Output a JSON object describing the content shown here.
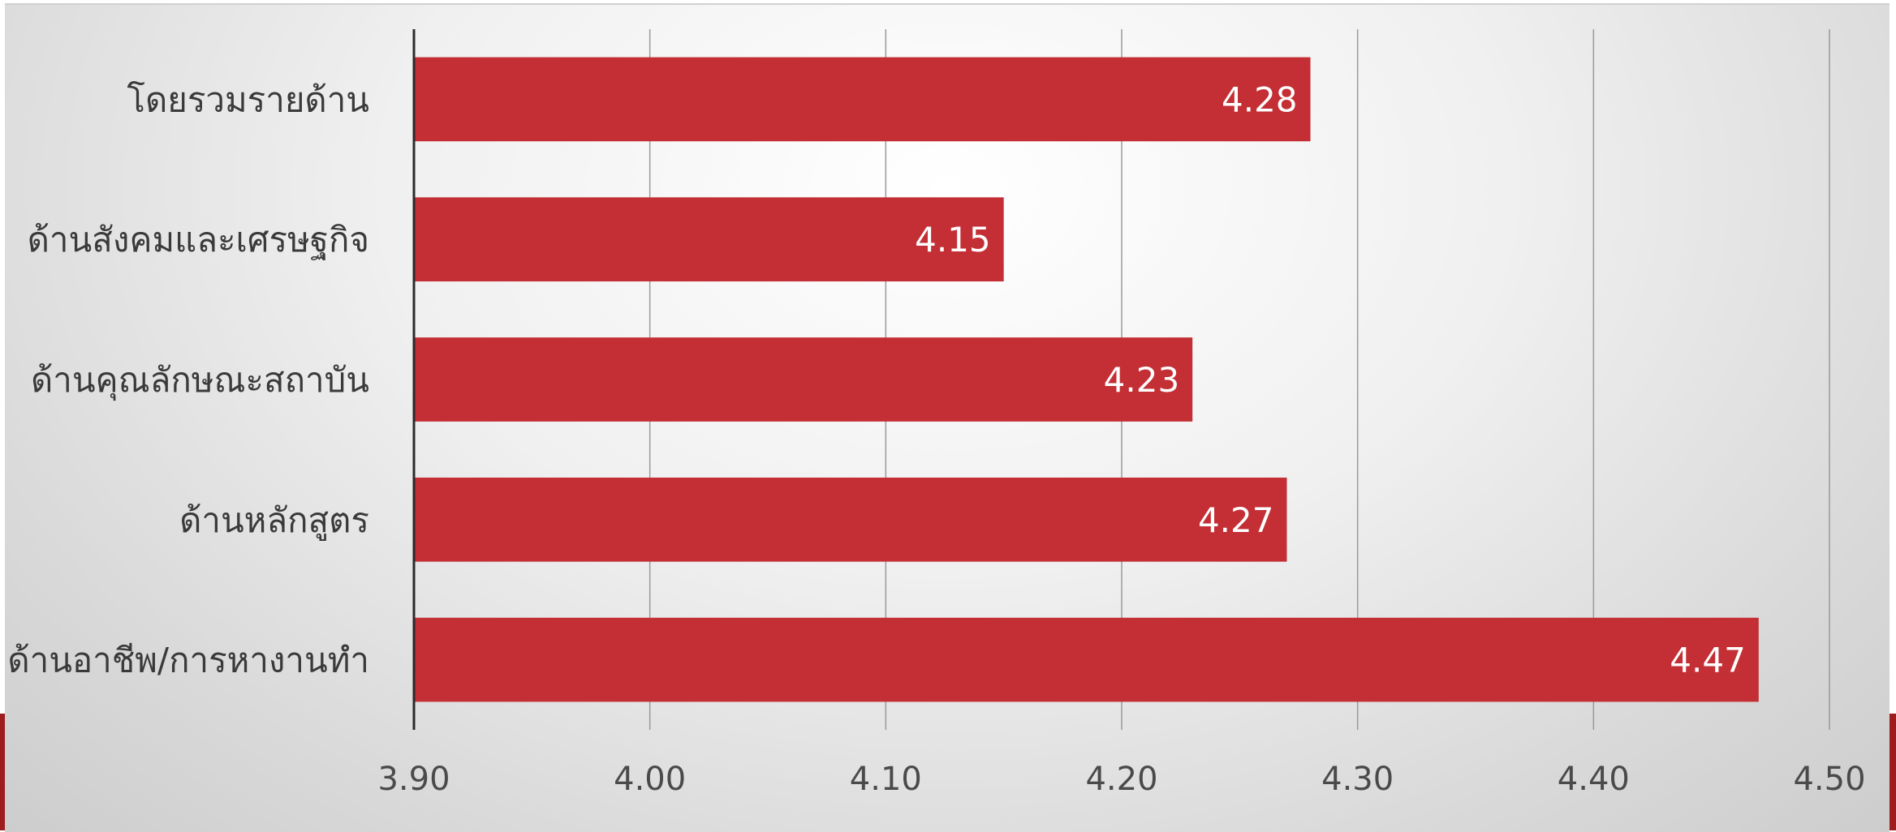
{
  "chart_data": {
    "type": "bar",
    "orientation": "horizontal",
    "categories": [
      "โดยรวมรายด้าน",
      "ด้านสังคมและเศรษฐกิจ",
      "ด้านคุณลักษณะสถาบัน",
      "ด้านหลักสูตร",
      "ด้านอาชีพ/การหางานทำ"
    ],
    "values": [
      4.28,
      4.15,
      4.23,
      4.27,
      4.47
    ],
    "value_labels": [
      "4.28",
      "4.15",
      "4.23",
      "4.27",
      "4.47"
    ],
    "xlim": [
      3.9,
      4.5
    ],
    "x_ticks": [
      3.9,
      4.0,
      4.1,
      4.2,
      4.3,
      4.4,
      4.5
    ],
    "x_tick_labels": [
      "3.90",
      "4.00",
      "4.10",
      "4.20",
      "4.30",
      "4.40",
      "4.50"
    ],
    "grid": true,
    "legend": "none",
    "title": "",
    "xlabel": "",
    "ylabel": "",
    "colors": {
      "bar": "#c32f34",
      "gridline": "#9a9a9a",
      "axis": "#2b2b2b",
      "accent": "#9e1b1e"
    }
  }
}
